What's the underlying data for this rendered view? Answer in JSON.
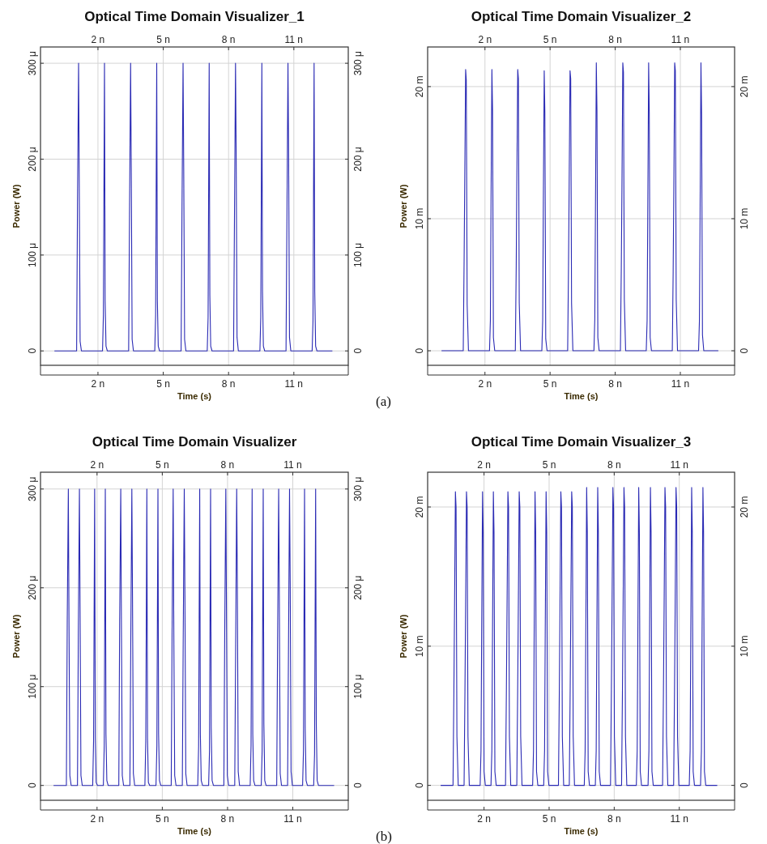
{
  "chart_data": [
    {
      "type": "line",
      "title": "Optical Time Domain Visualizer_1",
      "xlabel": "Time (s)",
      "ylabel": "Power (W)",
      "grid": true,
      "annotations": [
        "(a)"
      ],
      "xlim": [
        -0.64,
        13.5
      ],
      "xticks": [
        {
          "value": 2,
          "label": "2 n"
        },
        {
          "value": 5,
          "label": "5 n"
        },
        {
          "value": 8,
          "label": "8 n"
        },
        {
          "value": 11,
          "label": "11 n"
        }
      ],
      "x2lim": [
        -0.64,
        13.5
      ],
      "x2ticks": [
        {
          "value": 2,
          "label": "2 n"
        },
        {
          "value": 5,
          "label": "5 n"
        },
        {
          "value": 8,
          "label": "8 n"
        },
        {
          "value": 11,
          "label": "11 n"
        }
      ],
      "ylim": [
        -15,
        317
      ],
      "yticks": [
        {
          "value": 0,
          "label": "0"
        },
        {
          "value": 100,
          "label": "100 μ"
        },
        {
          "value": 200,
          "label": "200 μ"
        },
        {
          "value": 300,
          "label": "300 μ"
        }
      ],
      "y2lim": [
        -15,
        317
      ],
      "y2ticks": [
        {
          "value": 0,
          "label": "0"
        },
        {
          "value": 100,
          "label": "100 μ"
        },
        {
          "value": 200,
          "label": "200 μ"
        },
        {
          "value": 300,
          "label": "300 μ"
        }
      ],
      "x": [
        0,
        1.02,
        1.06,
        1.11,
        1.14,
        1.18,
        1.24,
        2.21,
        2.25,
        2.3,
        2.33,
        2.37,
        2.43,
        3.41,
        3.45,
        3.5,
        3.53,
        3.57,
        3.63,
        4.61,
        4.65,
        4.7,
        4.73,
        4.77,
        4.83,
        5.82,
        5.86,
        5.91,
        5.94,
        5.98,
        6.04,
        7.02,
        7.06,
        7.11,
        7.14,
        7.18,
        7.24,
        8.23,
        8.27,
        8.32,
        8.35,
        8.39,
        8.45,
        9.44,
        9.48,
        9.53,
        9.56,
        9.6,
        9.66,
        10.64,
        10.68,
        10.73,
        10.76,
        10.8,
        10.86,
        11.84,
        11.88,
        11.93,
        11.96,
        12,
        12.06,
        12.77
      ],
      "series": [
        {
          "color": "#2a2ab4",
          "values": [
            0,
            0,
            155,
            300,
            178,
            10,
            0,
            0,
            38,
            300,
            52,
            5,
            0,
            0,
            143,
            300,
            192,
            12,
            0,
            0,
            38,
            300,
            52,
            5,
            0,
            0,
            143,
            300,
            192,
            12,
            0,
            0,
            35,
            300,
            58,
            5,
            0,
            0,
            132,
            300,
            205,
            14,
            0,
            0,
            35,
            300,
            62,
            5,
            0,
            0,
            132,
            300,
            205,
            14,
            0,
            0,
            32,
            300,
            62,
            5,
            0,
            0
          ]
        }
      ]
    },
    {
      "type": "line",
      "title": "Optical Time Domain Visualizer_2",
      "xlabel": "Time (s)",
      "ylabel": "Power (W)",
      "grid": true,
      "xlim": [
        -0.64,
        13.5
      ],
      "xticks": [
        {
          "value": 2,
          "label": "2 n"
        },
        {
          "value": 5,
          "label": "5 n"
        },
        {
          "value": 8,
          "label": "8 n"
        },
        {
          "value": 11,
          "label": "11 n"
        }
      ],
      "x2lim": [
        -0.64,
        13.5
      ],
      "x2ticks": [
        {
          "value": 2,
          "label": "2 n"
        },
        {
          "value": 5,
          "label": "5 n"
        },
        {
          "value": 8,
          "label": "8 n"
        },
        {
          "value": 11,
          "label": "11 n"
        }
      ],
      "ylim": [
        -1.1,
        23
      ],
      "yticks": [
        {
          "value": 0,
          "label": "0"
        },
        {
          "value": 10,
          "label": "10 m"
        },
        {
          "value": 20,
          "label": "20 m"
        }
      ],
      "y2lim": [
        -1.1,
        23
      ],
      "y2ticks": [
        {
          "value": 0,
          "label": "0"
        },
        {
          "value": 10,
          "label": "10 m"
        },
        {
          "value": 20,
          "label": "20 m"
        }
      ],
      "x": [
        0,
        1.0,
        1.04,
        1.07,
        1.11,
        1.14,
        1.18,
        1.24,
        2.21,
        2.25,
        2.28,
        2.32,
        2.35,
        2.39,
        2.45,
        3.4,
        3.44,
        3.47,
        3.51,
        3.54,
        3.58,
        3.64,
        4.62,
        4.66,
        4.69,
        4.73,
        4.76,
        4.8,
        4.86,
        5.81,
        5.85,
        5.88,
        5.92,
        5.95,
        5.99,
        6.05,
        7.02,
        7.06,
        7.09,
        7.13,
        7.16,
        7.2,
        7.26,
        8.24,
        8.28,
        8.31,
        8.35,
        8.38,
        8.42,
        8.48,
        9.43,
        9.47,
        9.5,
        9.54,
        9.57,
        9.61,
        9.67,
        10.63,
        10.67,
        10.7,
        10.74,
        10.77,
        10.81,
        10.87,
        11.84,
        11.88,
        11.91,
        11.95,
        11.98,
        12.02,
        12.08,
        12.75
      ],
      "series": [
        {
          "color": "#2a2ab4",
          "values": [
            0,
            0,
            6.8,
            13,
            21.3,
            20.5,
            3.5,
            0,
            0,
            2.3,
            11.3,
            21.3,
            18.2,
            1,
            0,
            0,
            6.4,
            13,
            21.3,
            20.6,
            3.6,
            0,
            0,
            2.3,
            11.3,
            21.2,
            18,
            0.9,
            0,
            0,
            6.5,
            12.7,
            21.2,
            20.6,
            3.6,
            0,
            0,
            2.4,
            10.4,
            21.8,
            18.2,
            1,
            0,
            0,
            6.2,
            12.2,
            21.8,
            21.1,
            3.9,
            0,
            0,
            2.3,
            10.4,
            21.8,
            18,
            1,
            0,
            0,
            6,
            12.2,
            21.8,
            21.2,
            3.9,
            0,
            0,
            2.3,
            10.4,
            21.8,
            17.9,
            1.2,
            0,
            0
          ]
        }
      ]
    },
    {
      "type": "line",
      "title": "Optical Time Domain Visualizer",
      "xlabel": "Time (s)",
      "ylabel": "Power (W)",
      "grid": true,
      "annotations": [
        "(b)"
      ],
      "xlim": [
        -0.6,
        13.55
      ],
      "xticks": [
        {
          "value": 2,
          "label": "2 n"
        },
        {
          "value": 5,
          "label": "5 n"
        },
        {
          "value": 8,
          "label": "8 n"
        },
        {
          "value": 11,
          "label": "11 n"
        }
      ],
      "x2lim": [
        -0.6,
        13.55
      ],
      "x2ticks": [
        {
          "value": 2,
          "label": "2 n"
        },
        {
          "value": 5,
          "label": "5 n"
        },
        {
          "value": 8,
          "label": "8 n"
        },
        {
          "value": 11,
          "label": "11 n"
        }
      ],
      "ylim": [
        -15,
        317
      ],
      "yticks": [
        {
          "value": 0,
          "label": "0"
        },
        {
          "value": 100,
          "label": "100 μ"
        },
        {
          "value": 200,
          "label": "200 μ"
        },
        {
          "value": 300,
          "label": "300 μ"
        }
      ],
      "y2lim": [
        -15,
        317
      ],
      "y2ticks": [
        {
          "value": 0,
          "label": "0"
        },
        {
          "value": 100,
          "label": "100 μ"
        },
        {
          "value": 200,
          "label": "200 μ"
        },
        {
          "value": 300,
          "label": "300 μ"
        }
      ],
      "x": [
        0,
        0.59,
        0.63,
        0.68,
        0.71,
        0.75,
        0.81,
        1.1,
        1.14,
        1.19,
        1.22,
        1.26,
        1.32,
        1.8,
        1.84,
        1.89,
        1.92,
        1.96,
        2.02,
        2.29,
        2.33,
        2.38,
        2.41,
        2.45,
        2.51,
        3.0,
        3.04,
        3.09,
        3.12,
        3.16,
        3.22,
        3.51,
        3.55,
        3.6,
        3.63,
        3.67,
        3.73,
        4.2,
        4.24,
        4.29,
        4.32,
        4.36,
        4.42,
        4.71,
        4.75,
        4.8,
        4.83,
        4.87,
        4.93,
        5.41,
        5.45,
        5.5,
        5.53,
        5.57,
        5.63,
        5.92,
        5.96,
        6.01,
        6.04,
        6.08,
        6.14,
        6.63,
        6.67,
        6.72,
        6.75,
        6.79,
        6.85,
        7.13,
        7.17,
        7.22,
        7.25,
        7.29,
        7.35,
        7.83,
        7.87,
        7.92,
        7.95,
        7.99,
        8.05,
        8.33,
        8.37,
        8.42,
        8.45,
        8.49,
        8.55,
        9.04,
        9.08,
        9.13,
        9.16,
        9.2,
        9.26,
        9.55,
        9.59,
        9.64,
        9.67,
        9.71,
        9.77,
        10.26,
        10.3,
        10.35,
        10.38,
        10.42,
        10.48,
        10.76,
        10.8,
        10.85,
        10.88,
        10.92,
        10.98,
        11.45,
        11.49,
        11.54,
        11.57,
        11.61,
        11.67,
        11.96,
        12.0,
        12.05,
        12.08,
        12.12,
        12.18,
        12.9
      ],
      "series": [
        {
          "color": "#2a2ab4",
          "values": [
            0,
            0,
            168,
            300,
            165,
            10,
            0,
            0,
            155,
            300,
            178,
            10,
            0,
            0,
            45,
            300,
            48,
            3,
            0,
            0,
            40,
            300,
            52,
            5,
            0,
            0,
            167,
            300,
            165,
            10,
            0,
            0,
            143,
            300,
            192,
            12,
            0,
            0,
            45,
            300,
            48,
            3,
            0,
            0,
            40,
            300,
            52,
            5,
            0,
            0,
            155,
            300,
            153,
            10,
            0,
            0,
            143,
            300,
            192,
            12,
            0,
            0,
            40,
            300,
            52,
            5,
            0,
            0,
            35,
            300,
            58,
            5,
            0,
            0,
            155,
            300,
            178,
            10,
            0,
            0,
            132,
            300,
            205,
            14,
            0,
            0,
            40,
            300,
            52,
            5,
            0,
            0,
            35,
            300,
            62,
            5,
            0,
            0,
            143,
            300,
            192,
            12,
            0,
            0,
            132,
            300,
            205,
            14,
            0,
            0,
            35,
            300,
            58,
            5,
            0,
            0,
            32,
            300,
            62,
            5,
            0,
            0
          ]
        }
      ]
    },
    {
      "type": "line",
      "title": "Optical Time Domain Visualizer_3",
      "xlabel": "Time (s)",
      "ylabel": "Power (W)",
      "grid": true,
      "xlim": [
        -0.6,
        13.55
      ],
      "xticks": [
        {
          "value": 2,
          "label": "2 n"
        },
        {
          "value": 5,
          "label": "5 n"
        },
        {
          "value": 8,
          "label": "8 n"
        },
        {
          "value": 11,
          "label": "11 n"
        }
      ],
      "x2lim": [
        -0.6,
        13.55
      ],
      "x2ticks": [
        {
          "value": 2,
          "label": "2 n"
        },
        {
          "value": 5,
          "label": "5 n"
        },
        {
          "value": 8,
          "label": "8 n"
        },
        {
          "value": 11,
          "label": "11 n"
        }
      ],
      "ylim": [
        -1.07,
        22.5
      ],
      "yticks": [
        {
          "value": 0,
          "label": "0"
        },
        {
          "value": 10,
          "label": "10 m"
        },
        {
          "value": 20,
          "label": "20 m"
        }
      ],
      "y2lim": [
        -1.07,
        22.5
      ],
      "y2ticks": [
        {
          "value": 0,
          "label": "0"
        },
        {
          "value": 10,
          "label": "10 m"
        },
        {
          "value": 20,
          "label": "20 m"
        }
      ],
      "x": [
        0,
        0.57,
        0.61,
        0.64,
        0.68,
        0.71,
        0.75,
        0.81,
        1.08,
        1.12,
        1.15,
        1.19,
        1.22,
        1.26,
        1.32,
        1.82,
        1.86,
        1.89,
        1.93,
        1.96,
        2.0,
        2.06,
        2.32,
        2.36,
        2.39,
        2.43,
        2.46,
        2.5,
        2.56,
        2.99,
        3.03,
        3.06,
        3.1,
        3.13,
        3.17,
        3.23,
        3.51,
        3.55,
        3.58,
        3.62,
        3.65,
        3.69,
        3.75,
        4.24,
        4.28,
        4.31,
        4.35,
        4.38,
        4.42,
        4.48,
        4.75,
        4.79,
        4.82,
        4.86,
        4.89,
        4.93,
        4.99,
        5.43,
        5.47,
        5.5,
        5.54,
        5.57,
        5.61,
        5.67,
        5.93,
        5.97,
        6.0,
        6.04,
        6.07,
        6.11,
        6.17,
        6.62,
        6.66,
        6.69,
        6.73,
        6.76,
        6.8,
        6.86,
        7.13,
        7.17,
        7.2,
        7.24,
        7.27,
        7.31,
        7.37,
        7.83,
        7.87,
        7.9,
        7.94,
        7.97,
        8.01,
        8.07,
        8.34,
        8.38,
        8.41,
        8.45,
        8.48,
        8.52,
        8.58,
        9.02,
        9.06,
        9.09,
        9.13,
        9.16,
        9.2,
        9.26,
        9.56,
        9.6,
        9.63,
        9.67,
        9.7,
        9.74,
        9.8,
        10.23,
        10.27,
        10.3,
        10.34,
        10.37,
        10.41,
        10.47,
        10.74,
        10.78,
        10.81,
        10.85,
        10.88,
        10.92,
        10.98,
        11.46,
        11.5,
        11.53,
        11.57,
        11.6,
        11.64,
        11.7,
        11.98,
        12.02,
        12.05,
        12.09,
        12.12,
        12.16,
        12.22,
        12.75
      ],
      "series": [
        {
          "color": "#2a2ab4",
          "values": [
            0,
            0,
            6.8,
            12.7,
            21.1,
            20,
            3.5,
            0,
            0,
            6.8,
            12.7,
            21.1,
            20,
            3.5,
            0,
            0,
            2.5,
            10.8,
            21.1,
            18.2,
            1,
            0,
            0,
            2.5,
            10.8,
            21.1,
            18.2,
            1,
            0,
            0,
            6.8,
            12.7,
            21.1,
            20,
            3.5,
            0,
            0,
            6.8,
            12.7,
            21.1,
            20,
            3.5,
            0,
            0,
            2.5,
            10.8,
            21.1,
            18.2,
            1,
            0,
            0,
            2.5,
            10.8,
            21.1,
            18.2,
            1,
            0,
            0,
            6.8,
            12.7,
            21.1,
            20,
            3.5,
            0,
            0,
            6.8,
            12.7,
            21.1,
            20,
            3.5,
            0,
            0,
            2.5,
            10.8,
            21.4,
            18.2,
            1,
            0,
            0,
            2.5,
            10.8,
            21.4,
            18.2,
            1,
            0,
            0,
            6.8,
            12.7,
            21.4,
            20,
            3.5,
            0,
            0,
            6.8,
            12.7,
            21.4,
            20,
            3.5,
            0,
            0,
            2.5,
            10.8,
            21.4,
            18.2,
            1,
            0,
            0,
            2.5,
            10.8,
            21.4,
            18.2,
            1,
            0,
            0,
            6.8,
            12.7,
            21.4,
            20,
            3.5,
            0,
            0,
            6.8,
            12.7,
            21.4,
            20,
            3.5,
            0,
            0,
            2.5,
            10.8,
            21.4,
            18.2,
            1,
            0,
            0,
            2.5,
            10.8,
            21.4,
            18.2,
            1,
            0,
            0
          ]
        }
      ]
    }
  ]
}
